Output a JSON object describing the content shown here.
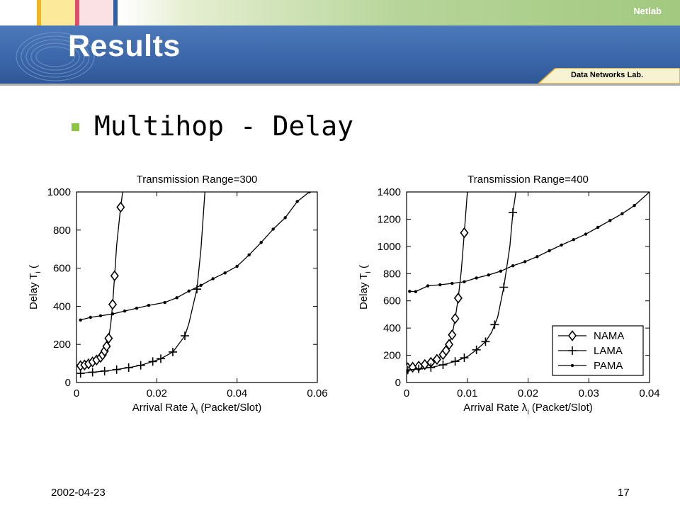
{
  "header": {
    "title": "Results",
    "brand": "Netlab",
    "subbrand": "Data Networks Lab."
  },
  "bullet": {
    "text": "Multihop - Delay"
  },
  "footer": {
    "date": "2002-04-23",
    "page": "17"
  },
  "colors": {
    "header_blue": "#3a66a9",
    "bullet_green": "#8cc63f",
    "top_green": "#a2c97f"
  },
  "chart_data": [
    {
      "type": "line",
      "title": "Transmission Range=300",
      "xlabel": "Arrival Rate λi (Packet/Slot)",
      "ylabel": "Delay Ti (Time Slot)",
      "xlim": [
        0,
        0.06
      ],
      "ylim": [
        0,
        1000
      ],
      "xticks": [
        0,
        0.02,
        0.04,
        0.06
      ],
      "xtick_labels": [
        "0",
        "0.02",
        "0.04",
        "0.06"
      ],
      "yticks": [
        0,
        200,
        400,
        600,
        800,
        1000
      ],
      "ytick_labels": [
        "0",
        "200",
        "400",
        "600",
        "800",
        "1000"
      ],
      "legend": null,
      "series": [
        {
          "name": "NAMA",
          "marker": "diamond",
          "x": [
            0.001,
            0.002,
            0.003,
            0.004,
            0.005,
            0.006,
            0.0065,
            0.007,
            0.0075,
            0.008,
            0.0085,
            0.009,
            0.0095,
            0.01,
            0.0105,
            0.011,
            0.0115
          ],
          "y": [
            88,
            92,
            98,
            108,
            118,
            132,
            145,
            165,
            190,
            232,
            300,
            410,
            560,
            720,
            820,
            920,
            1000
          ],
          "marked": [
            0.001,
            0.002,
            0.003,
            0.004,
            0.005,
            0.006,
            0.0065,
            0.007,
            0.0075,
            0.008,
            0.009,
            0.0095,
            0.011
          ]
        },
        {
          "name": "LAMA",
          "marker": "plus",
          "x": [
            0.001,
            0.004,
            0.007,
            0.01,
            0.013,
            0.016,
            0.019,
            0.021,
            0.024,
            0.027,
            0.028,
            0.029,
            0.03,
            0.031,
            0.032
          ],
          "y": [
            48,
            54,
            60,
            68,
            78,
            90,
            110,
            125,
            160,
            245,
            310,
            400,
            490,
            700,
            1000
          ],
          "marked": [
            0.001,
            0.004,
            0.007,
            0.01,
            0.013,
            0.016,
            0.019,
            0.021,
            0.024,
            0.027,
            0.03
          ]
        },
        {
          "name": "PAMA",
          "marker": "dot",
          "x": [
            0.001,
            0.0035,
            0.006,
            0.009,
            0.012,
            0.015,
            0.018,
            0.022,
            0.025,
            0.028,
            0.031,
            0.034,
            0.037,
            0.04,
            0.043,
            0.046,
            0.049,
            0.052,
            0.055,
            0.058
          ],
          "y": [
            328,
            342,
            350,
            360,
            375,
            390,
            405,
            420,
            445,
            480,
            510,
            545,
            575,
            610,
            670,
            735,
            805,
            865,
            950,
            1000
          ]
        }
      ]
    },
    {
      "type": "line",
      "title": "Transmission Range=400",
      "xlabel": "Arrival Rate λi (Packet/Slot)",
      "ylabel": "Delay Ti (Time Slot)",
      "xlim": [
        0,
        0.04
      ],
      "ylim": [
        0,
        1400
      ],
      "xticks": [
        0,
        0.01,
        0.02,
        0.03,
        0.04
      ],
      "xtick_labels": [
        "0",
        "0.01",
        "0.02",
        "0.03",
        "0.04"
      ],
      "yticks": [
        0,
        200,
        400,
        600,
        800,
        1000,
        1200,
        1400
      ],
      "ytick_labels": [
        "0",
        "200",
        "400",
        "600",
        "800",
        "1000",
        "1200",
        "1400"
      ],
      "legend": "bottom-right",
      "series": [
        {
          "name": "NAMA",
          "marker": "diamond",
          "x": [
            0.0002,
            0.001,
            0.002,
            0.003,
            0.004,
            0.005,
            0.006,
            0.0065,
            0.007,
            0.0075,
            0.008,
            0.0085,
            0.009,
            0.0095,
            0.01
          ],
          "y": [
            108,
            112,
            120,
            132,
            148,
            170,
            205,
            235,
            280,
            350,
            470,
            620,
            820,
            1100,
            1400
          ],
          "marked": [
            0.0002,
            0.001,
            0.002,
            0.003,
            0.004,
            0.005,
            0.006,
            0.0065,
            0.007,
            0.0075,
            0.008,
            0.0085,
            0.0095
          ]
        },
        {
          "name": "LAMA",
          "marker": "plus",
          "x": [
            0.0002,
            0.002,
            0.004,
            0.006,
            0.008,
            0.01,
            0.0115,
            0.013,
            0.014,
            0.015,
            0.016,
            0.017,
            0.0175,
            0.018
          ],
          "y": [
            92,
            100,
            110,
            130,
            155,
            190,
            240,
            300,
            370,
            480,
            700,
            1000,
            1250,
            1400
          ],
          "marked": [
            0.0002,
            0.002,
            0.004,
            0.006,
            0.008,
            0.0095,
            0.0115,
            0.013,
            0.0145,
            0.016,
            0.0175
          ]
        },
        {
          "name": "PAMA",
          "marker": "dot",
          "x": [
            0.0005,
            0.0015,
            0.0035,
            0.0055,
            0.0075,
            0.0095,
            0.0115,
            0.0135,
            0.0155,
            0.0175,
            0.0195,
            0.0215,
            0.0235,
            0.0255,
            0.0275,
            0.0295,
            0.0315,
            0.0335,
            0.0355,
            0.0375,
            0.04
          ],
          "y": [
            670,
            668,
            710,
            718,
            728,
            740,
            768,
            790,
            818,
            858,
            888,
            925,
            968,
            1010,
            1050,
            1090,
            1140,
            1190,
            1240,
            1300,
            1400
          ]
        }
      ]
    }
  ]
}
